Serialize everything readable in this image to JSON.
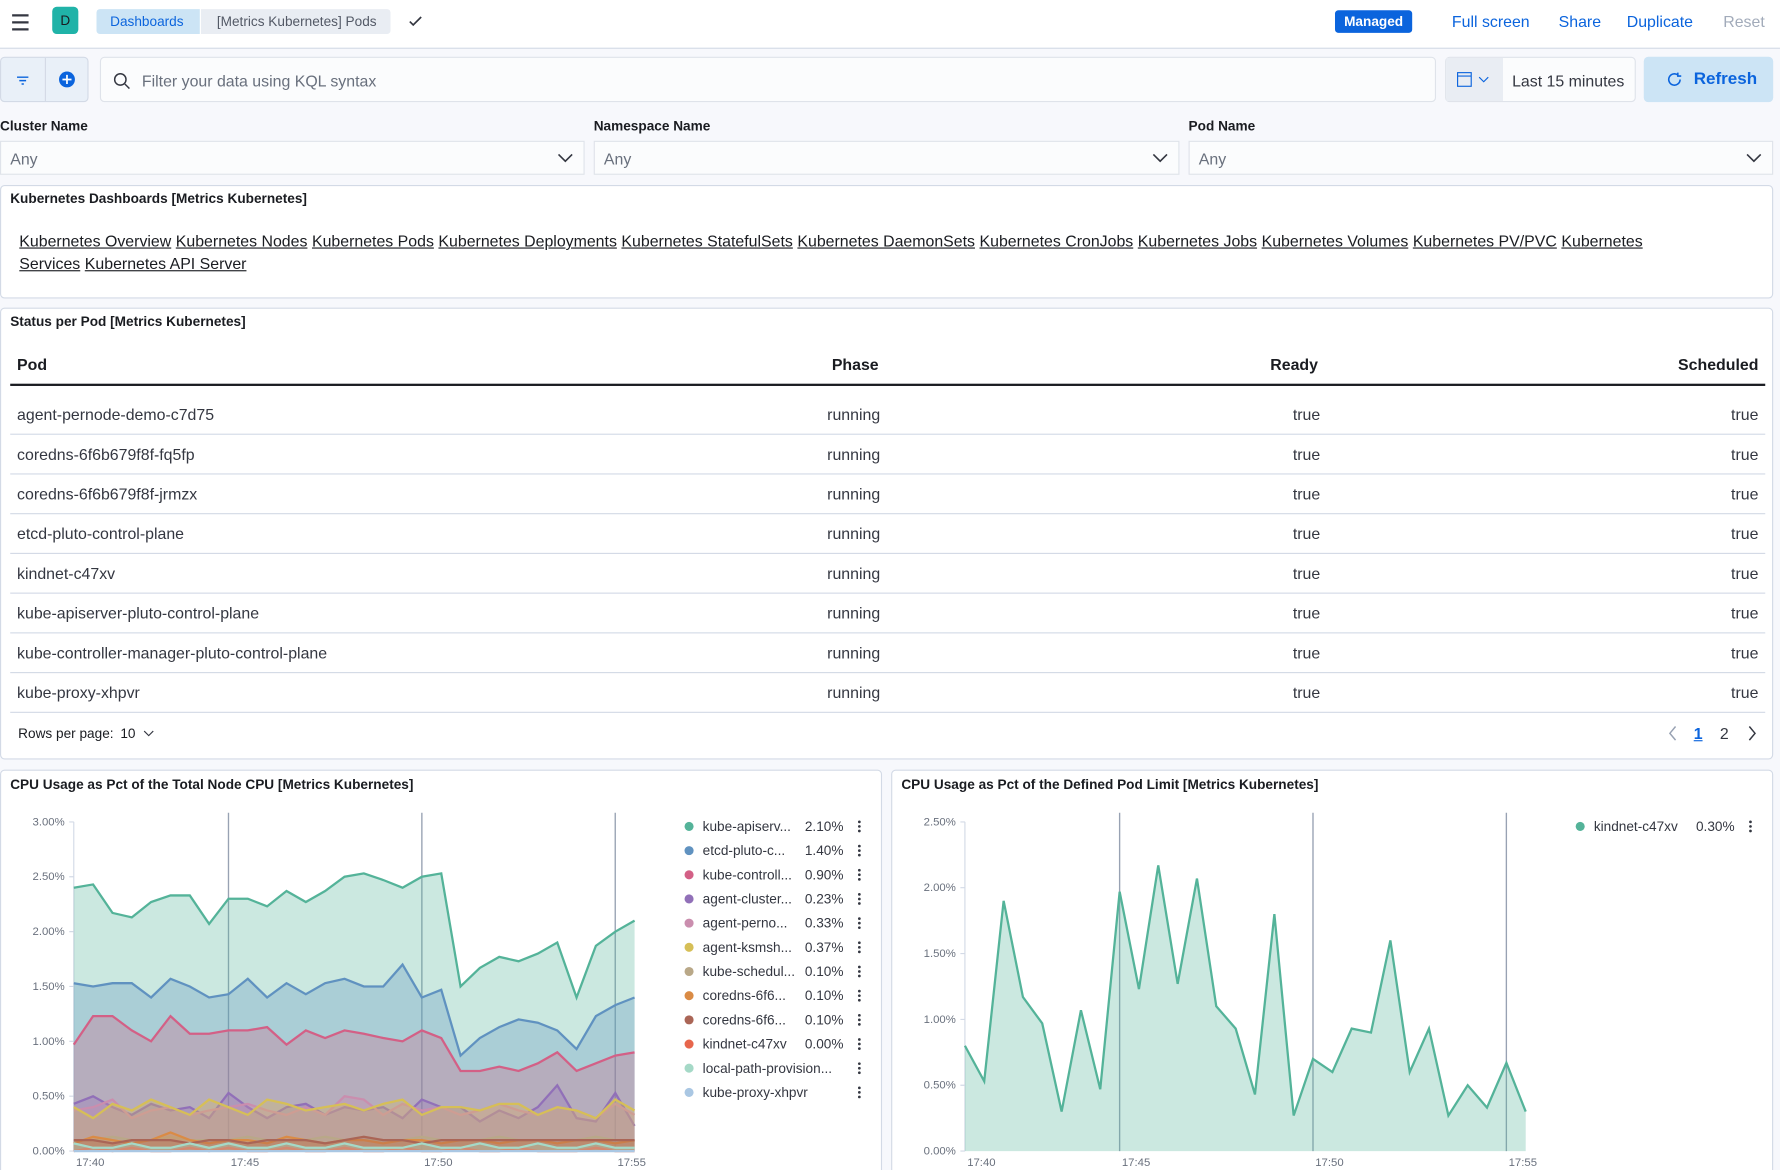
{
  "header": {
    "menu": "☰",
    "space": "D",
    "breadcrumbs": [
      "Dashboards",
      "[Metrics Kubernetes] Pods"
    ],
    "badge": "Managed",
    "actions": [
      "Full screen",
      "Share",
      "Duplicate",
      "Reset"
    ]
  },
  "query": {
    "placeholder": "Filter your data using KQL syntax",
    "time_range": "Last 15 minutes",
    "refresh": "Refresh"
  },
  "controls": [
    {
      "label": "Cluster Name",
      "value": "Any"
    },
    {
      "label": "Namespace Name",
      "value": "Any"
    },
    {
      "label": "Pod Name",
      "value": "Any"
    }
  ],
  "links_panel": {
    "title": "Kubernetes Dashboards [Metrics Kubernetes]",
    "links": [
      "Kubernetes Overview",
      "Kubernetes Nodes",
      "Kubernetes Pods",
      "Kubernetes Deployments",
      "Kubernetes StatefulSets",
      "Kubernetes DaemonSets",
      "Kubernetes CronJobs",
      "Kubernetes Jobs",
      "Kubernetes Volumes",
      "Kubernetes PV/PVC",
      "Kubernetes Services",
      "Kubernetes API Server"
    ]
  },
  "status_table": {
    "title": "Status per Pod [Metrics Kubernetes]",
    "columns": [
      "Pod",
      "Phase",
      "Ready",
      "Scheduled"
    ],
    "rows": [
      [
        "agent-pernode-demo-c7d75",
        "running",
        "true",
        "true"
      ],
      [
        "coredns-6f6b679f8f-fq5fp",
        "running",
        "true",
        "true"
      ],
      [
        "coredns-6f6b679f8f-jrmzx",
        "running",
        "true",
        "true"
      ],
      [
        "etcd-pluto-control-plane",
        "running",
        "true",
        "true"
      ],
      [
        "kindnet-c47xv",
        "running",
        "true",
        "true"
      ],
      [
        "kube-apiserver-pluto-control-plane",
        "running",
        "true",
        "true"
      ],
      [
        "kube-controller-manager-pluto-control-plane",
        "running",
        "true",
        "true"
      ],
      [
        "kube-proxy-xhpvr",
        "running",
        "true",
        "true"
      ]
    ],
    "rows_per_page_label": "Rows per page:",
    "rows_per_page": 10,
    "pages": [
      1,
      2
    ]
  },
  "chart_data": [
    {
      "type": "area",
      "title": "CPU Usage as Pct of the Total Node CPU [Metrics Kubernetes]",
      "categories": [
        "17:40",
        null,
        null,
        null,
        null,
        null,
        null,
        null,
        "17:45",
        null,
        null,
        null,
        null,
        null,
        null,
        null,
        null,
        null,
        "17:50",
        null,
        null,
        null,
        null,
        null,
        null,
        null,
        null,
        null,
        "17:55",
        null
      ],
      "ylim": [
        0,
        3
      ],
      "yticks": [
        {
          "value": 0,
          "label": "0.00%"
        },
        {
          "value": 0.5,
          "label": "0.50%"
        },
        {
          "value": 1,
          "label": "1.00%"
        },
        {
          "value": 1.5,
          "label": "1.50%"
        },
        {
          "value": 2,
          "label": "2.00%"
        },
        {
          "value": 2.5,
          "label": "2.50%"
        },
        {
          "value": 3,
          "label": "3.00%"
        }
      ],
      "series": [
        {
          "name": "kube-apiserv...",
          "legend_value": "2.10%",
          "color": "#54b399",
          "values": [
            2.4,
            2.43,
            2.17,
            2.13,
            2.27,
            2.33,
            2.33,
            2.07,
            2.3,
            2.3,
            2.23,
            2.37,
            2.27,
            2.37,
            2.5,
            2.53,
            2.47,
            2.4,
            2.5,
            2.53,
            1.5,
            1.67,
            1.77,
            1.73,
            1.8,
            1.9,
            1.4,
            1.87,
            2.0,
            2.1
          ]
        },
        {
          "name": "etcd-pluto-c...",
          "legend_value": "1.40%",
          "color": "#6092c0",
          "values": [
            1.53,
            1.5,
            1.53,
            1.53,
            1.4,
            1.57,
            1.5,
            1.4,
            1.43,
            1.57,
            1.4,
            1.53,
            1.43,
            1.53,
            1.57,
            1.5,
            1.5,
            1.7,
            1.4,
            1.47,
            0.87,
            1.03,
            1.13,
            1.2,
            1.17,
            1.1,
            0.93,
            1.23,
            1.33,
            1.4
          ]
        },
        {
          "name": "kube-controll...",
          "legend_value": "0.90%",
          "color": "#d36086",
          "values": [
            0.97,
            1.23,
            1.23,
            1.1,
            1.0,
            1.23,
            1.07,
            1.07,
            1.1,
            1.1,
            1.13,
            0.97,
            1.1,
            1.03,
            1.1,
            1.07,
            1.03,
            1.0,
            1.1,
            1.03,
            0.73,
            0.73,
            0.77,
            0.73,
            0.8,
            0.9,
            0.73,
            0.8,
            0.87,
            0.9
          ]
        },
        {
          "name": "agent-cluster...",
          "legend_value": "0.23%",
          "color": "#9170b8",
          "values": [
            0.43,
            0.5,
            0.4,
            0.33,
            0.43,
            0.37,
            0.4,
            0.3,
            0.53,
            0.4,
            0.3,
            0.4,
            0.43,
            0.33,
            0.4,
            0.37,
            0.4,
            0.3,
            0.47,
            0.4,
            0.4,
            0.27,
            0.37,
            0.3,
            0.4,
            0.6,
            0.3,
            0.27,
            0.53,
            0.23
          ]
        },
        {
          "name": "agent-perno...",
          "legend_value": "0.33%",
          "color": "#ca8eae",
          "values": [
            0.37,
            0.4,
            0.47,
            0.3,
            0.37,
            0.4,
            0.33,
            0.37,
            0.4,
            0.43,
            0.37,
            0.33,
            0.4,
            0.33,
            0.5,
            0.47,
            0.33,
            0.43,
            0.37,
            0.4,
            0.33,
            0.37,
            0.43,
            0.37,
            0.33,
            0.4,
            0.37,
            0.3,
            0.43,
            0.33
          ]
        },
        {
          "name": "agent-ksmsh...",
          "legend_value": "0.37%",
          "color": "#d6bf57",
          "values": [
            0.4,
            0.3,
            0.43,
            0.37,
            0.47,
            0.4,
            0.33,
            0.47,
            0.4,
            0.33,
            0.47,
            0.43,
            0.37,
            0.4,
            0.43,
            0.37,
            0.43,
            0.47,
            0.33,
            0.4,
            0.4,
            0.37,
            0.43,
            0.43,
            0.33,
            0.4,
            0.37,
            0.3,
            0.47,
            0.37
          ]
        },
        {
          "name": "kube-schedul...",
          "legend_value": "0.10%",
          "color": "#b9a888",
          "values": [
            0.1,
            0.1,
            0.13,
            0.1,
            0.1,
            0.13,
            0.1,
            0.1,
            0.1,
            0.13,
            0.1,
            0.1,
            0.1,
            0.13,
            0.1,
            0.1,
            0.1,
            0.1,
            0.13,
            0.1,
            0.1,
            0.1,
            0.13,
            0.1,
            0.1,
            0.1,
            0.1,
            0.13,
            0.1,
            0.1
          ]
        },
        {
          "name": "coredns-6f6...",
          "legend_value": "0.10%",
          "color": "#da8b45",
          "values": [
            0.07,
            0.13,
            0.1,
            0.07,
            0.1,
            0.17,
            0.1,
            0.07,
            0.1,
            0.1,
            0.07,
            0.13,
            0.1,
            0.07,
            0.1,
            0.1,
            0.07,
            0.1,
            0.1,
            0.07,
            0.1,
            0.1,
            0.07,
            0.1,
            0.1,
            0.07,
            0.1,
            0.1,
            0.07,
            0.1
          ]
        },
        {
          "name": "coredns-6f6...",
          "legend_value": "0.10%",
          "color": "#aa6556",
          "values": [
            0.1,
            0.1,
            0.07,
            0.1,
            0.1,
            0.1,
            0.07,
            0.1,
            0.1,
            0.07,
            0.1,
            0.1,
            0.1,
            0.07,
            0.1,
            0.13,
            0.1,
            0.1,
            0.07,
            0.1,
            0.1,
            0.1,
            0.1,
            0.1,
            0.1,
            0.1,
            0.1,
            0.1,
            0.1,
            0.1
          ]
        },
        {
          "name": "kindnet-c47xv",
          "legend_value": "0.00%",
          "color": "#e7664c",
          "values": [
            0.0,
            0.03,
            0.0,
            0.03,
            0.0,
            0.0,
            0.03,
            0.0,
            0.03,
            0.0,
            0.0,
            0.03,
            0.0,
            0.0,
            0.03,
            0.0,
            0.0,
            0.03,
            0.0,
            0.0,
            0.03,
            0.0,
            0.0,
            0.03,
            0.0,
            0.0,
            0.0,
            0.03,
            0.0,
            0.0
          ]
        },
        {
          "name": "local-path-provision...",
          "legend_value": "",
          "color": "#a5d9c7",
          "values": [
            0.07,
            0.03,
            0.03,
            0.07,
            0.03,
            0.03,
            0.07,
            0.03,
            0.07,
            0.03,
            0.03,
            0.07,
            0.03,
            0.03,
            0.07,
            0.03,
            0.03,
            0.03,
            0.07,
            0.03,
            0.03,
            0.07,
            0.03,
            0.03,
            0.07,
            0.03,
            0.03,
            0.07,
            0.03,
            0.03
          ]
        },
        {
          "name": "kube-proxy-xhpvr",
          "legend_value": "",
          "color": "#aac7e3",
          "values": [
            0.0,
            0.0,
            0.0,
            0.0,
            0.0,
            0.0,
            0.0,
            0.0,
            0.0,
            0.0,
            0.0,
            0.0,
            0.0,
            0.0,
            0.0,
            0.0,
            0.0,
            0.0,
            0.0,
            0.0,
            0.0,
            0.0,
            0.0,
            0.0,
            0.0,
            0.0,
            0.0,
            0.0,
            0.0,
            0.0
          ]
        }
      ]
    },
    {
      "type": "area",
      "title": "CPU Usage as Pct of the Defined Pod Limit [Metrics Kubernetes]",
      "categories": [
        "17:40",
        null,
        null,
        null,
        null,
        null,
        null,
        null,
        "17:45",
        null,
        null,
        null,
        null,
        null,
        null,
        null,
        null,
        null,
        "17:50",
        null,
        null,
        null,
        null,
        null,
        null,
        null,
        null,
        null,
        "17:55",
        null
      ],
      "ylim": [
        0,
        2.5
      ],
      "yticks": [
        {
          "value": 0,
          "label": "0.00%"
        },
        {
          "value": 0.5,
          "label": "0.50%"
        },
        {
          "value": 1,
          "label": "1.00%"
        },
        {
          "value": 1.5,
          "label": "1.50%"
        },
        {
          "value": 2,
          "label": "2.00%"
        },
        {
          "value": 2.5,
          "label": "2.50%"
        }
      ],
      "series": [
        {
          "name": "kindnet-c47xv",
          "legend_value": "0.30%",
          "color": "#54b399",
          "values": [
            0.8,
            0.53,
            1.9,
            1.17,
            0.97,
            0.3,
            1.07,
            0.47,
            1.97,
            1.23,
            2.17,
            1.27,
            2.07,
            1.1,
            0.93,
            0.43,
            1.8,
            0.27,
            0.7,
            0.6,
            0.93,
            0.9,
            1.6,
            0.6,
            0.93,
            0.27,
            0.5,
            0.33,
            0.67,
            0.3
          ]
        }
      ]
    }
  ]
}
